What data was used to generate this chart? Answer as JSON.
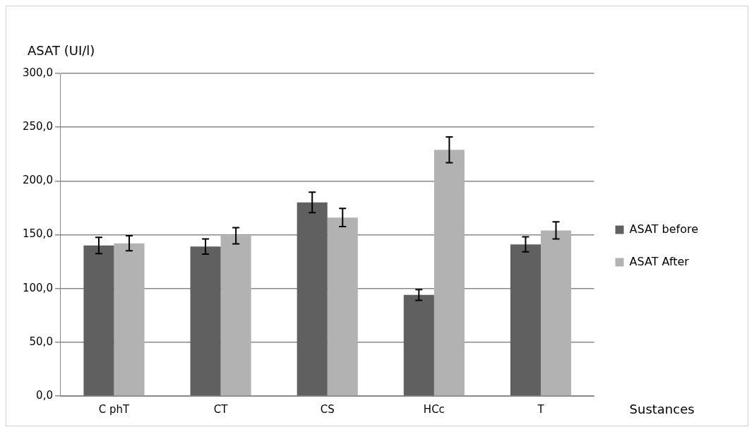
{
  "chart_data": {
    "type": "bar",
    "xlabel": "Sustances",
    "ylabel": "ASAT (UI/l)",
    "categories": [
      "C phT",
      "CT",
      "CS",
      "HCc",
      "T"
    ],
    "series": [
      {
        "name": "ASAT before",
        "color": "#606060",
        "values": [
          140,
          139,
          180,
          94,
          141
        ],
        "errors": [
          7.5,
          7,
          9.5,
          5,
          7
        ]
      },
      {
        "name": "ASAT After",
        "color": "#b2b2b2",
        "values": [
          142,
          149,
          166,
          229,
          154
        ],
        "errors": [
          7,
          7.5,
          8.5,
          12,
          8
        ]
      }
    ],
    "ylim": [
      0,
      300
    ],
    "yticks": [
      {
        "value": 0,
        "label": "0,0"
      },
      {
        "value": 50,
        "label": "50,0"
      },
      {
        "value": 100,
        "label": "100,0"
      },
      {
        "value": 150,
        "label": "150,0"
      },
      {
        "value": 200,
        "label": "200,0"
      },
      {
        "value": 250,
        "label": "250,0"
      },
      {
        "value": 300,
        "label": "300,0"
      }
    ],
    "grid": "y",
    "legend": "right"
  }
}
